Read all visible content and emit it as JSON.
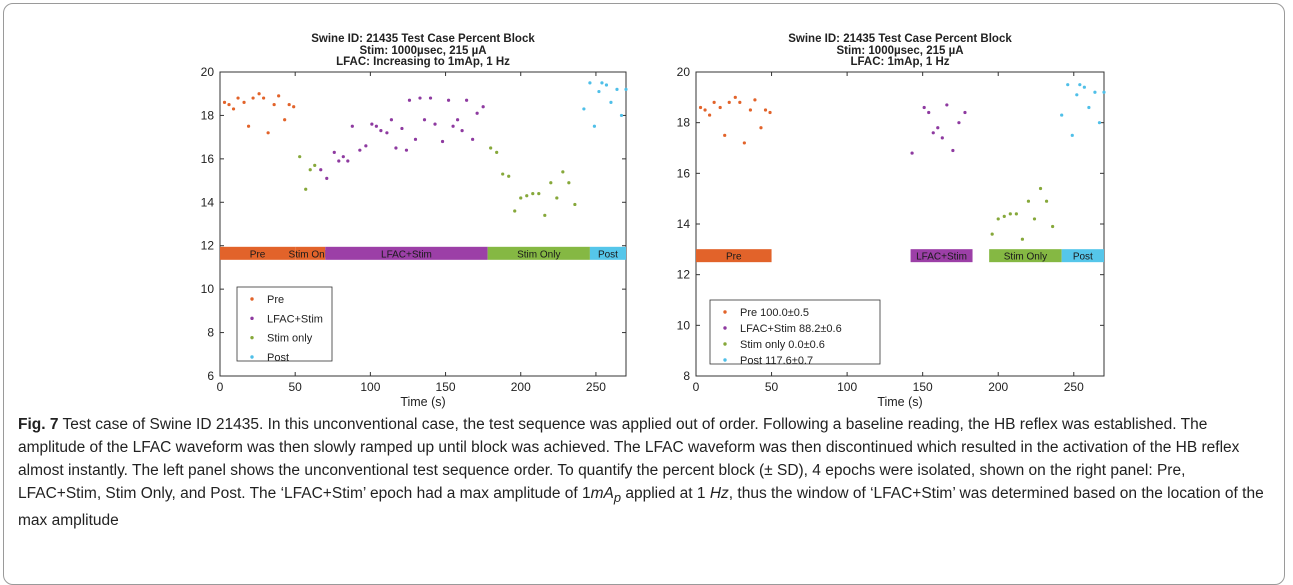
{
  "chart_data": [
    {
      "type": "scatter",
      "title": "Swine ID: 21435 Test Case Percent Block",
      "subtitle_lines": [
        "Stim: 1000µsec, 215 µA",
        "LFAC: Increasing to 1mAp, 1 Hz"
      ],
      "xlabel": "Time (s)",
      "ylabel": "",
      "xlim": [
        0,
        270
      ],
      "ylim": [
        6,
        20
      ],
      "xticks": [
        0,
        50,
        100,
        150,
        200,
        250
      ],
      "yticks": [
        6,
        8,
        10,
        12,
        14,
        16,
        18,
        20
      ],
      "epoch_bar": {
        "y_center": 11.65,
        "segments": [
          {
            "label": "Pre",
            "x0": 0,
            "x1": 50,
            "color": "#e2632a"
          },
          {
            "label": "Stim Only",
            "x0": 50,
            "x1": 70,
            "color": "#e2632a"
          },
          {
            "label": "LFAC+Stim",
            "x0": 70,
            "x1": 178,
            "color": "#9c3fa7"
          },
          {
            "label": "Stim Only",
            "x0": 178,
            "x1": 246,
            "color": "#85b843"
          },
          {
            "label": "Post",
            "x0": 246,
            "x1": 270,
            "color": "#55c6ea"
          }
        ]
      },
      "legend": {
        "position": "lower-left",
        "entries": [
          {
            "label": "Pre",
            "color": "#e2632a"
          },
          {
            "label": "LFAC+Stim",
            "color": "#8e3aa0"
          },
          {
            "label": "Stim only",
            "color": "#86a83a"
          },
          {
            "label": "Post",
            "color": "#4fbfe8"
          }
        ]
      },
      "series": [
        {
          "name": "Pre",
          "color": "#e2632a",
          "points": [
            [
              3,
              18.6
            ],
            [
              6,
              18.5
            ],
            [
              9,
              18.3
            ],
            [
              12,
              18.8
            ],
            [
              16,
              18.6
            ],
            [
              19,
              17.5
            ],
            [
              22,
              18.8
            ],
            [
              26,
              19.0
            ],
            [
              29,
              18.8
            ],
            [
              32,
              17.2
            ],
            [
              36,
              18.5
            ],
            [
              39,
              18.9
            ],
            [
              43,
              17.8
            ],
            [
              46,
              18.5
            ],
            [
              49,
              18.4
            ]
          ]
        },
        {
          "name": "Stim only",
          "color": "#86a83a",
          "points": [
            [
              53,
              16.1
            ],
            [
              57,
              14.6
            ],
            [
              60,
              15.5
            ],
            [
              63,
              15.7
            ]
          ]
        },
        {
          "name": "LFAC+Stim",
          "color": "#8e3aa0",
          "points": [
            [
              67,
              15.5
            ],
            [
              71,
              15.1
            ],
            [
              76,
              16.3
            ],
            [
              79,
              15.9
            ],
            [
              82,
              16.1
            ],
            [
              85,
              15.9
            ],
            [
              88,
              17.5
            ],
            [
              93,
              16.4
            ],
            [
              97,
              16.6
            ],
            [
              101,
              17.6
            ],
            [
              104,
              17.5
            ],
            [
              107,
              17.3
            ],
            [
              111,
              17.2
            ],
            [
              114,
              17.8
            ],
            [
              117,
              16.5
            ],
            [
              121,
              17.4
            ],
            [
              124,
              16.4
            ],
            [
              126,
              18.7
            ],
            [
              130,
              16.9
            ],
            [
              133,
              18.8
            ],
            [
              136,
              17.8
            ],
            [
              140,
              18.8
            ],
            [
              143,
              17.6
            ],
            [
              148,
              16.8
            ],
            [
              152,
              18.7
            ],
            [
              155,
              17.5
            ],
            [
              158,
              17.8
            ],
            [
              161,
              17.3
            ],
            [
              164,
              18.7
            ],
            [
              168,
              16.9
            ],
            [
              171,
              18.1
            ],
            [
              175,
              18.4
            ]
          ]
        },
        {
          "name": "Stim only",
          "color": "#86a83a",
          "points": [
            [
              180,
              16.5
            ],
            [
              184,
              16.3
            ],
            [
              188,
              15.3
            ],
            [
              192,
              15.2
            ],
            [
              196,
              13.6
            ],
            [
              200,
              14.2
            ],
            [
              204,
              14.3
            ],
            [
              208,
              14.4
            ],
            [
              212,
              14.4
            ],
            [
              216,
              13.4
            ],
            [
              220,
              14.9
            ],
            [
              224,
              14.2
            ],
            [
              228,
              15.4
            ],
            [
              232,
              14.9
            ],
            [
              236,
              13.9
            ]
          ]
        },
        {
          "name": "Post",
          "color": "#4fbfe8",
          "points": [
            [
              242,
              18.3
            ],
            [
              246,
              19.5
            ],
            [
              249,
              17.5
            ],
            [
              252,
              19.1
            ],
            [
              254,
              19.5
            ],
            [
              257,
              19.4
            ],
            [
              260,
              18.6
            ],
            [
              264,
              19.2
            ],
            [
              267,
              18.0
            ],
            [
              270,
              19.2
            ]
          ]
        }
      ]
    },
    {
      "type": "scatter",
      "title": "Swine ID: 21435 Test Case Percent Block",
      "subtitle_lines": [
        "Stim: 1000µsec, 215 µA",
        "LFAC: 1mAp, 1 Hz"
      ],
      "xlabel": "Time (s)",
      "ylabel": "",
      "xlim": [
        0,
        270
      ],
      "ylim": [
        8,
        20
      ],
      "xticks": [
        0,
        50,
        100,
        150,
        200,
        250
      ],
      "yticks": [
        8,
        10,
        12,
        14,
        16,
        18,
        20
      ],
      "epoch_bar": {
        "y_center": 12.75,
        "segments": [
          {
            "label": "Pre",
            "x0": 0,
            "x1": 50,
            "color": "#e2632a"
          },
          {
            "label": "LFAC+Stim",
            "x0": 142,
            "x1": 183,
            "color": "#9c3fa7"
          },
          {
            "label": "Stim Only",
            "x0": 194,
            "x1": 242,
            "color": "#85b843"
          },
          {
            "label": "Post",
            "x0": 242,
            "x1": 270,
            "color": "#55c6ea"
          }
        ]
      },
      "legend": {
        "position": "lower-left",
        "entries": [
          {
            "label": "Pre 100.0±0.5",
            "color": "#e2632a"
          },
          {
            "label": "LFAC+Stim 88.2±0.6",
            "color": "#8e3aa0"
          },
          {
            "label": "Stim only 0.0±0.6",
            "color": "#86a83a"
          },
          {
            "label": "Post 117.6±0.7",
            "color": "#4fbfe8"
          }
        ]
      },
      "series": [
        {
          "name": "Pre 100.0±0.5",
          "color": "#e2632a",
          "points": [
            [
              3,
              18.6
            ],
            [
              6,
              18.5
            ],
            [
              9,
              18.3
            ],
            [
              12,
              18.8
            ],
            [
              16,
              18.6
            ],
            [
              19,
              17.5
            ],
            [
              22,
              18.8
            ],
            [
              26,
              19.0
            ],
            [
              29,
              18.8
            ],
            [
              32,
              17.2
            ],
            [
              36,
              18.5
            ],
            [
              39,
              18.9
            ],
            [
              43,
              17.8
            ],
            [
              46,
              18.5
            ],
            [
              49,
              18.4
            ]
          ]
        },
        {
          "name": "LFAC+Stim 88.2±0.6",
          "color": "#8e3aa0",
          "points": [
            [
              143,
              16.8
            ],
            [
              151,
              18.6
            ],
            [
              154,
              18.4
            ],
            [
              157,
              17.6
            ],
            [
              160,
              17.8
            ],
            [
              163,
              17.4
            ],
            [
              166,
              18.7
            ],
            [
              170,
              16.9
            ],
            [
              174,
              18.0
            ],
            [
              178,
              18.4
            ]
          ]
        },
        {
          "name": "Stim only 0.0±0.6",
          "color": "#86a83a",
          "points": [
            [
              196,
              13.6
            ],
            [
              200,
              14.2
            ],
            [
              204,
              14.3
            ],
            [
              208,
              14.4
            ],
            [
              212,
              14.4
            ],
            [
              216,
              13.4
            ],
            [
              220,
              14.9
            ],
            [
              224,
              14.2
            ],
            [
              228,
              15.4
            ],
            [
              232,
              14.9
            ],
            [
              236,
              13.9
            ]
          ]
        },
        {
          "name": "Post 117.6±0.7",
          "color": "#4fbfe8",
          "points": [
            [
              242,
              18.3
            ],
            [
              246,
              19.5
            ],
            [
              249,
              17.5
            ],
            [
              252,
              19.1
            ],
            [
              254,
              19.5
            ],
            [
              257,
              19.4
            ],
            [
              260,
              18.6
            ],
            [
              264,
              19.2
            ],
            [
              267,
              18.0
            ],
            [
              270,
              19.2
            ]
          ]
        }
      ]
    }
  ],
  "caption": {
    "label": "Fig. 7",
    "text_1": " Test case of Swine ID 21435. In this unconventional case, the test sequence was applied out of order. Following a baseline reading, the HB reflex was established. The amplitude of the LFAC waveform was then slowly ramped up until block was achieved. The LFAC waveform was then discontinued which resulted in the activation of the HB reflex almost instantly. The left panel shows the unconventional test sequence order. To quantify the percent block (± SD), 4 epochs were isolated, shown on the right panel: Pre, LFAC+Stim, Stim Only, and Post. The ‘LFAC+Stim’ epoch had a max amplitude of 1",
    "math_m": "mA",
    "math_sub": "p",
    "text_2": " applied at 1 ",
    "math_hz": "Hz",
    "text_3": ", thus the window of ‘LFAC+Stim’ was determined based on the location of the max amplitude"
  }
}
